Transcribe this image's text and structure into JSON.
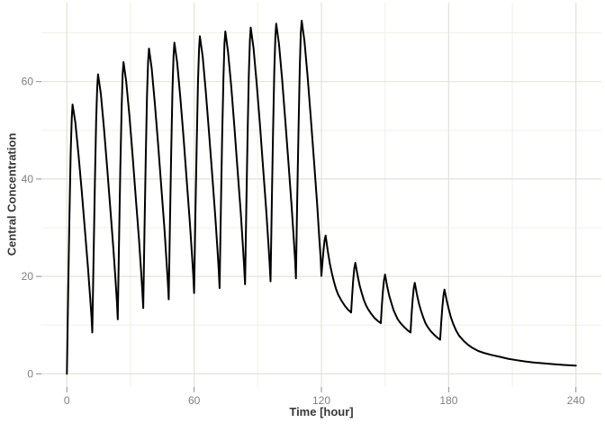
{
  "chart_data": {
    "type": "line",
    "title": "",
    "xlabel": "Time [hour]",
    "ylabel": "Central Concentration",
    "x_unit": "hour",
    "xlim": [
      -12,
      252
    ],
    "ylim": [
      -2.7,
      76.2
    ],
    "x_ticks": [
      0,
      60,
      120,
      180,
      240
    ],
    "x_minor_ticks": [
      30,
      90,
      150,
      210
    ],
    "y_ticks": [
      0,
      20,
      40,
      60
    ],
    "y_minor_ticks": [
      10,
      30,
      50,
      70
    ],
    "grid": "major+minor",
    "legend_position": "none",
    "line_color": "#000000",
    "line_width": 2,
    "background_color": "#ffffff",
    "major_grid_color": "#e3e2d9",
    "minor_grid_color": "#f0efe8",
    "tick_color": "#8c8c8c",
    "tick_label_color": "#7f7f7f",
    "axis_title_color": "#383838",
    "peaks": [
      [
        2.7,
        55.3
      ],
      [
        14.7,
        61.5
      ],
      [
        26.7,
        64.0
      ],
      [
        38.7,
        66.8
      ],
      [
        50.7,
        68.0
      ],
      [
        62.7,
        69.3
      ],
      [
        74.7,
        70.3
      ],
      [
        86.7,
        71.1
      ],
      [
        98.7,
        71.9
      ],
      [
        110.7,
        72.5
      ],
      [
        122,
        28.4
      ],
      [
        136,
        22.8
      ],
      [
        150,
        20.4
      ],
      [
        164,
        18.7
      ],
      [
        178,
        17.3
      ]
    ],
    "troughs": [
      [
        12,
        8.5
      ],
      [
        24,
        11.2
      ],
      [
        36,
        13.5
      ],
      [
        48,
        15.3
      ],
      [
        60,
        16.6
      ],
      [
        72,
        17.6
      ],
      [
        84,
        18.4
      ],
      [
        96,
        19.0
      ],
      [
        108,
        19.6
      ],
      [
        120,
        20.1
      ],
      [
        134,
        12.6
      ],
      [
        148,
        10.4
      ],
      [
        162,
        8.5
      ],
      [
        176,
        7.0
      ]
    ],
    "end_value": [
      240,
      1.7
    ],
    "series": [
      {
        "name": "central-concentration",
        "points": [
          [
            0,
            0
          ],
          [
            0.6,
            16.6
          ],
          [
            1.2,
            32.1
          ],
          [
            1.8,
            45.3
          ],
          [
            2.3,
            52.5
          ],
          [
            2.7,
            55.3
          ],
          [
            4,
            51.6
          ],
          [
            5.5,
            45
          ],
          [
            7,
            37.5
          ],
          [
            8.5,
            29.6
          ],
          [
            10,
            21.6
          ],
          [
            11,
            15.5
          ],
          [
            11.6,
            11.8
          ],
          [
            12,
            8.5
          ],
          [
            12.6,
            24.4
          ],
          [
            13.2,
            39.2
          ],
          [
            13.8,
            52
          ],
          [
            14.3,
            58.9
          ],
          [
            14.7,
            61.5
          ],
          [
            16,
            57.5
          ],
          [
            17.5,
            50.4
          ],
          [
            19,
            42.4
          ],
          [
            20.5,
            33.8
          ],
          [
            22,
            25.3
          ],
          [
            23,
            18.7
          ],
          [
            23.6,
            14.7
          ],
          [
            24,
            11.2
          ],
          [
            24.6,
            27
          ],
          [
            25.2,
            41.8
          ],
          [
            25.8,
            54.5
          ],
          [
            26.3,
            61.4
          ],
          [
            26.7,
            64
          ],
          [
            28,
            60
          ],
          [
            29.5,
            52.9
          ],
          [
            31,
            44.8
          ],
          [
            32.5,
            36.2
          ],
          [
            34,
            27.6
          ],
          [
            35,
            21.1
          ],
          [
            35.6,
            17
          ],
          [
            36,
            13.5
          ],
          [
            36.6,
            29.5
          ],
          [
            37.2,
            44.4
          ],
          [
            37.8,
            57.2
          ],
          [
            38.3,
            64.1
          ],
          [
            38.7,
            66.8
          ],
          [
            40,
            62.7
          ],
          [
            41.5,
            55.5
          ],
          [
            43,
            47.2
          ],
          [
            44.5,
            38.5
          ],
          [
            46,
            29.7
          ],
          [
            47,
            23
          ],
          [
            47.6,
            18.9
          ],
          [
            48,
            15.3
          ],
          [
            48.6,
            31.1
          ],
          [
            49.2,
            45.9
          ],
          [
            49.8,
            58.5
          ],
          [
            50.3,
            65.4
          ],
          [
            50.7,
            68
          ],
          [
            52,
            63.9
          ],
          [
            53.5,
            56.7
          ],
          [
            55,
            48.5
          ],
          [
            56.5,
            39.7
          ],
          [
            58,
            31
          ],
          [
            59,
            24.3
          ],
          [
            59.6,
            20.2
          ],
          [
            60,
            16.6
          ],
          [
            60.6,
            32.4
          ],
          [
            61.2,
            47.2
          ],
          [
            61.8,
            59.8
          ],
          [
            62.3,
            66.7
          ],
          [
            62.7,
            69.3
          ],
          [
            64,
            65.2
          ],
          [
            65.5,
            57.9
          ],
          [
            67,
            49.7
          ],
          [
            68.5,
            40.9
          ],
          [
            70,
            32.1
          ],
          [
            71,
            25.4
          ],
          [
            71.6,
            21.2
          ],
          [
            72,
            17.6
          ],
          [
            72.6,
            33.4
          ],
          [
            73.2,
            48.2
          ],
          [
            73.8,
            60.8
          ],
          [
            74.3,
            67.7
          ],
          [
            74.7,
            70.3
          ],
          [
            76,
            66.1
          ],
          [
            77.5,
            58.9
          ],
          [
            79,
            50.6
          ],
          [
            80.5,
            41.8
          ],
          [
            82,
            32.9
          ],
          [
            83,
            26.2
          ],
          [
            83.6,
            22
          ],
          [
            84,
            18.4
          ],
          [
            84.6,
            34.2
          ],
          [
            85.2,
            49
          ],
          [
            85.8,
            61.6
          ],
          [
            86.3,
            68.5
          ],
          [
            86.7,
            71.1
          ],
          [
            88,
            66.9
          ],
          [
            89.5,
            59.6
          ],
          [
            91,
            51.3
          ],
          [
            92.5,
            42.4
          ],
          [
            94,
            33.6
          ],
          [
            95,
            26.8
          ],
          [
            95.6,
            22.6
          ],
          [
            96,
            19
          ],
          [
            96.6,
            34.9
          ],
          [
            97.2,
            49.7
          ],
          [
            97.8,
            62.4
          ],
          [
            98.3,
            69.3
          ],
          [
            98.7,
            71.9
          ],
          [
            100,
            67.7
          ],
          [
            101.5,
            60.4
          ],
          [
            103,
            52
          ],
          [
            104.5,
            43.1
          ],
          [
            106,
            34.2
          ],
          [
            107,
            27.4
          ],
          [
            107.6,
            23.3
          ],
          [
            108,
            19.6
          ],
          [
            108.6,
            35.5
          ],
          [
            109.2,
            50.3
          ],
          [
            109.8,
            63
          ],
          [
            110.3,
            69.9
          ],
          [
            110.7,
            72.5
          ],
          [
            112,
            68.3
          ],
          [
            113.5,
            61
          ],
          [
            115,
            52.6
          ],
          [
            116.5,
            43.7
          ],
          [
            118,
            34.8
          ],
          [
            119,
            28
          ],
          [
            119.6,
            23.9
          ],
          [
            120,
            20.1
          ],
          [
            120.5,
            23
          ],
          [
            121,
            25.5
          ],
          [
            121.5,
            27.4
          ],
          [
            122,
            28.4
          ],
          [
            123,
            25.2
          ],
          [
            124,
            22.6
          ],
          [
            125,
            20.5
          ],
          [
            126,
            18.8
          ],
          [
            127,
            17.3
          ],
          [
            128,
            16.2
          ],
          [
            129.5,
            15
          ],
          [
            131,
            14
          ],
          [
            132.5,
            13.2
          ],
          [
            134,
            12.6
          ],
          [
            134.5,
            16.2
          ],
          [
            135,
            19.2
          ],
          [
            135.5,
            21.6
          ],
          [
            136,
            22.8
          ],
          [
            137,
            20.3
          ],
          [
            138,
            18.2
          ],
          [
            139,
            16.6
          ],
          [
            140,
            15.2
          ],
          [
            141,
            14.1
          ],
          [
            142,
            13.3
          ],
          [
            143.5,
            12.3
          ],
          [
            145,
            11.5
          ],
          [
            146.5,
            10.9
          ],
          [
            148,
            10.4
          ],
          [
            148.5,
            13.9
          ],
          [
            149,
            16.9
          ],
          [
            149.5,
            19.2
          ],
          [
            150,
            20.4
          ],
          [
            151,
            18
          ],
          [
            152,
            16
          ],
          [
            153,
            14.5
          ],
          [
            154,
            13.1
          ],
          [
            155,
            12.1
          ],
          [
            156,
            11.2
          ],
          [
            157.5,
            10.3
          ],
          [
            159,
            9.6
          ],
          [
            160.5,
            9
          ],
          [
            162,
            8.5
          ],
          [
            162.5,
            12.1
          ],
          [
            163,
            15.1
          ],
          [
            163.5,
            17.5
          ],
          [
            164,
            18.7
          ],
          [
            165,
            16.4
          ],
          [
            166,
            14.4
          ],
          [
            167,
            12.9
          ],
          [
            168,
            11.6
          ],
          [
            169,
            10.5
          ],
          [
            170,
            9.7
          ],
          [
            171.5,
            8.8
          ],
          [
            173,
            8.1
          ],
          [
            174.5,
            7.5
          ],
          [
            176,
            7
          ],
          [
            176.5,
            10.6
          ],
          [
            177,
            13.6
          ],
          [
            177.5,
            16
          ],
          [
            178,
            17.3
          ],
          [
            179,
            15.2
          ],
          [
            180,
            13.3
          ],
          [
            181,
            11.7
          ],
          [
            182,
            10.4
          ],
          [
            183.5,
            8.9
          ],
          [
            185,
            7.8
          ],
          [
            187,
            6.8
          ],
          [
            189,
            6
          ],
          [
            191,
            5.4
          ],
          [
            194,
            4.7
          ],
          [
            197,
            4.25
          ],
          [
            200,
            3.9
          ],
          [
            204,
            3.5
          ],
          [
            208,
            3.1
          ],
          [
            212,
            2.8
          ],
          [
            216,
            2.55
          ],
          [
            220,
            2.35
          ],
          [
            225,
            2.15
          ],
          [
            230,
            1.95
          ],
          [
            235,
            1.8
          ],
          [
            240,
            1.7
          ]
        ]
      }
    ]
  }
}
